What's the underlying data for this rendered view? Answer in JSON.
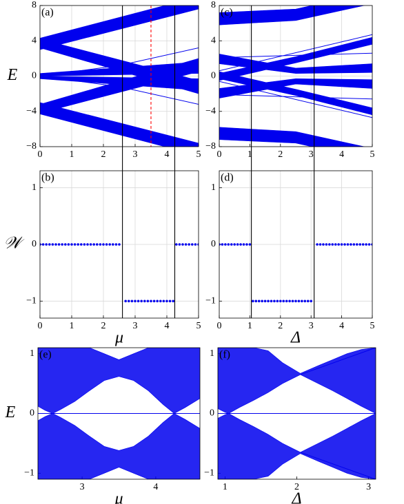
{
  "chart_data": [
    {
      "type": "band",
      "label": "(a)",
      "ylabel": "E",
      "color": "#0000ee",
      "grid": true,
      "xlim": [
        0,
        5
      ],
      "ylim": [
        -8,
        8
      ],
      "xticks": [
        0,
        1,
        2,
        3,
        4,
        5
      ],
      "yticks": [
        {
          "value": -8,
          "label": "−8"
        },
        {
          "value": -4,
          "label": "−4"
        },
        0,
        4,
        8
      ],
      "bands": [
        {
          "x": [
            0,
            5
          ],
          "lower": [
            3.0,
            7.6
          ],
          "upper": [
            4.3,
            9
          ]
        },
        {
          "x": [
            0,
            5
          ],
          "lower": [
            -4.3,
            -9
          ],
          "upper": [
            -3.0,
            -7.6
          ]
        },
        {
          "x": [
            0,
            5
          ],
          "lower": [
            -4.2,
            0.5
          ],
          "upper": [
            -3.2,
            2.0
          ]
        },
        {
          "x": [
            0,
            5
          ],
          "lower": [
            3.2,
            -2.0
          ],
          "upper": [
            4.2,
            -0.5
          ]
        },
        {
          "x": [
            0,
            5
          ],
          "lower": [
            0,
            0.3
          ],
          "upper": [
            0.3,
            1.6
          ]
        },
        {
          "x": [
            0,
            5
          ],
          "lower": [
            -0.3,
            -1.6
          ],
          "upper": [
            0,
            -0.3
          ]
        }
      ],
      "lines": [
        {
          "x": [
            0,
            2.5,
            5
          ],
          "values": [
            0,
            1.2,
            3.2
          ]
        },
        {
          "x": [
            0,
            2.5,
            5
          ],
          "values": [
            0,
            -1.2,
            -3.2
          ]
        }
      ],
      "vlines": [
        {
          "x": 2.6,
          "color": "#000000",
          "dashed": false
        },
        {
          "x": 4.25,
          "color": "#000000",
          "dashed": false
        },
        {
          "x": 3.5,
          "color": "#ff0000",
          "dashed": true
        }
      ]
    },
    {
      "type": "scatter",
      "label": "(b)",
      "ylabel": "𝒲",
      "xlabel": "μ",
      "color": "#0000ee",
      "grid": true,
      "xlim": [
        0,
        5
      ],
      "ylim": [
        -1.3,
        1.3
      ],
      "xticks": [
        0,
        1,
        2,
        3,
        4,
        5
      ],
      "yticks": [
        {
          "value": -1,
          "label": "−1"
        },
        0,
        1
      ],
      "x": [
        0,
        0.1,
        0.2,
        0.3,
        0.4,
        0.5,
        0.6,
        0.7,
        0.8,
        0.9,
        1.0,
        1.1,
        1.2,
        1.3,
        1.4,
        1.5,
        1.6,
        1.7,
        1.8,
        1.9,
        2.0,
        2.1,
        2.2,
        2.3,
        2.4,
        2.5,
        2.7,
        2.8,
        2.9,
        3.0,
        3.1,
        3.2,
        3.3,
        3.4,
        3.5,
        3.6,
        3.7,
        3.8,
        3.9,
        4.0,
        4.1,
        4.2,
        4.3,
        4.4,
        4.5,
        4.6,
        4.7,
        4.8,
        4.9,
        5.0
      ],
      "values": [
        0,
        0,
        0,
        0,
        0,
        0,
        0,
        0,
        0,
        0,
        0,
        0,
        0,
        0,
        0,
        0,
        0,
        0,
        0,
        0,
        0,
        0,
        0,
        0,
        0,
        0,
        -1,
        -1,
        -1,
        -1,
        -1,
        -1,
        -1,
        -1,
        -1,
        -1,
        -1,
        -1,
        -1,
        -1,
        -1,
        -1,
        0,
        0,
        0,
        0,
        0,
        0,
        0,
        0
      ],
      "vlines": [
        {
          "x": 2.6,
          "color": "#000000",
          "dashed": false
        },
        {
          "x": 4.25,
          "color": "#000000",
          "dashed": false
        }
      ]
    },
    {
      "type": "band",
      "label": "(c)",
      "color": "#0000ee",
      "grid": true,
      "xlim": [
        0,
        5
      ],
      "ylim": [
        -8,
        8
      ],
      "xticks": [
        0,
        1,
        2,
        3,
        4,
        5
      ],
      "yticks": [
        {
          "value": -8,
          "label": "−8"
        },
        {
          "value": -4,
          "label": "−4"
        },
        0,
        4,
        8
      ],
      "bands": [
        {
          "x": [
            0,
            2.5,
            5
          ],
          "lower": [
            5.8,
            6.3,
            8.2
          ],
          "upper": [
            7.2,
            7.6,
            9.5
          ]
        },
        {
          "x": [
            0,
            2.5,
            5
          ],
          "lower": [
            -7.2,
            -7.6,
            -9.5
          ],
          "upper": [
            -5.8,
            -6.3,
            -8.2
          ]
        },
        {
          "x": [
            0,
            2.5,
            5
          ],
          "lower": [
            1.4,
            0.3,
            0.4
          ],
          "upper": [
            2.5,
            0.9,
            1.4
          ]
        },
        {
          "x": [
            0,
            2.5,
            5
          ],
          "lower": [
            -2.5,
            -0.9,
            -1.4
          ],
          "upper": [
            -1.4,
            -0.3,
            -0.4
          ]
        },
        {
          "x": [
            0,
            2.5,
            5
          ],
          "lower": [
            -0.5,
            1.5,
            3.6
          ],
          "upper": [
            0.3,
            2.2,
            4.4
          ]
        },
        {
          "x": [
            0,
            2.5,
            5
          ],
          "lower": [
            -0.3,
            -2.2,
            -4.4
          ],
          "upper": [
            0.5,
            -1.5,
            -3.6
          ]
        }
      ],
      "lines": [
        {
          "x": [
            0,
            5
          ],
          "values": [
            0.6,
            4.7
          ]
        },
        {
          "x": [
            0,
            5
          ],
          "values": [
            -0.6,
            -4.7
          ]
        },
        {
          "x": [
            0,
            5
          ],
          "values": [
            2.1,
            2.6
          ]
        },
        {
          "x": [
            0,
            5
          ],
          "values": [
            -2.1,
            -2.6
          ]
        }
      ],
      "vlines": [
        {
          "x": 1.05,
          "color": "#000000",
          "dashed": false
        },
        {
          "x": 3.1,
          "color": "#000000",
          "dashed": false
        }
      ]
    },
    {
      "type": "scatter",
      "label": "(d)",
      "xlabel": "Δ",
      "color": "#0000ee",
      "grid": true,
      "xlim": [
        0,
        5
      ],
      "ylim": [
        -1.3,
        1.3
      ],
      "xticks": [
        0,
        1,
        2,
        3,
        4,
        5
      ],
      "yticks": [
        {
          "value": -1,
          "label": "−1"
        },
        0,
        1
      ],
      "x": [
        0,
        0.1,
        0.2,
        0.3,
        0.4,
        0.5,
        0.6,
        0.7,
        0.8,
        0.9,
        1.0,
        1.1,
        1.2,
        1.3,
        1.4,
        1.5,
        1.6,
        1.7,
        1.8,
        1.9,
        2.0,
        2.1,
        2.2,
        2.3,
        2.4,
        2.5,
        2.6,
        2.7,
        2.8,
        2.9,
        3.0,
        3.2,
        3.3,
        3.4,
        3.5,
        3.6,
        3.7,
        3.8,
        3.9,
        4.0,
        4.1,
        4.2,
        4.3,
        4.4,
        4.5,
        4.6,
        4.7,
        4.8,
        4.9,
        5.0
      ],
      "values": [
        0,
        0,
        0,
        0,
        0,
        0,
        0,
        0,
        0,
        0,
        0,
        -1,
        -1,
        -1,
        -1,
        -1,
        -1,
        -1,
        -1,
        -1,
        -1,
        -1,
        -1,
        -1,
        -1,
        -1,
        -1,
        -1,
        -1,
        -1,
        -1,
        0,
        0,
        0,
        0,
        0,
        0,
        0,
        0,
        0,
        0,
        0,
        0,
        0,
        0,
        0,
        0,
        0,
        0,
        0
      ],
      "vlines": [
        {
          "x": 1.05,
          "color": "#000000",
          "dashed": false
        },
        {
          "x": 3.1,
          "color": "#000000",
          "dashed": false
        }
      ]
    },
    {
      "type": "band",
      "label": "(e)",
      "ylabel": "E",
      "xlabel": "μ",
      "color": "#0000ee",
      "grid": false,
      "xlim": [
        2.4,
        4.6
      ],
      "ylim": [
        -1.1,
        1.1
      ],
      "xticks": [
        3,
        4
      ],
      "yticks": [
        {
          "value": -1,
          "label": "−1"
        },
        0,
        1
      ],
      "bands": [
        {
          "x": [
            2.4,
            2.5,
            2.6,
            2.7,
            2.9,
            3.1,
            3.3,
            3.5,
            3.7,
            3.9,
            4.1,
            4.25,
            4.4,
            4.6
          ],
          "lower": [
            0.12,
            0.05,
            0,
            0.06,
            0.2,
            0.38,
            0.55,
            0.62,
            0.55,
            0.38,
            0.15,
            0,
            0.1,
            0.25
          ],
          "upper": [
            1.1,
            1.1,
            1.1,
            1.1,
            1.1,
            1.1,
            1.0,
            0.9,
            1.0,
            1.1,
            1.1,
            1.1,
            1.1,
            1.1
          ]
        },
        {
          "x": [
            2.4,
            2.5,
            2.6,
            2.7,
            2.9,
            3.1,
            3.3,
            3.5,
            3.7,
            3.9,
            4.1,
            4.25,
            4.4,
            4.6
          ],
          "lower": [
            -1.1,
            -1.1,
            -1.1,
            -1.1,
            -1.1,
            -1.1,
            -1.0,
            -0.9,
            -1.0,
            -1.1,
            -1.1,
            -1.1,
            -1.1,
            -1.1
          ],
          "upper": [
            -0.12,
            -0.05,
            0,
            -0.06,
            -0.2,
            -0.38,
            -0.55,
            -0.62,
            -0.55,
            -0.38,
            -0.15,
            0,
            -0.1,
            -0.25
          ]
        }
      ],
      "lines": [
        {
          "x": [
            2.4,
            4.6
          ],
          "values": [
            0,
            0
          ]
        }
      ]
    },
    {
      "type": "band",
      "label": "(f)",
      "xlabel": "Δ",
      "color": "#0000ee",
      "grid": false,
      "xlim": [
        0.9,
        3.1
      ],
      "ylim": [
        -1.1,
        1.1
      ],
      "xticks": [
        1,
        2,
        3
      ],
      "yticks": [
        {
          "value": -1,
          "label": "−1"
        },
        0,
        1
      ],
      "bands": [
        {
          "x": [
            0.9,
            1.0,
            1.05,
            1.2,
            1.4,
            1.6,
            1.8,
            2.05,
            2.3,
            2.5,
            2.7,
            2.9,
            3.1
          ],
          "lower": [
            0.08,
            0.02,
            0,
            0.1,
            0.22,
            0.35,
            0.5,
            0.65,
            0.5,
            0.38,
            0.25,
            0.12,
            0
          ],
          "upper": [
            1.1,
            1.1,
            1.1,
            1.1,
            1.1,
            1.05,
            0.85,
            0.67,
            0.8,
            0.9,
            1.0,
            1.07,
            1.1
          ]
        },
        {
          "x": [
            0.9,
            1.0,
            1.05,
            1.2,
            1.4,
            1.6,
            1.8,
            2.05,
            2.3,
            2.5,
            2.7,
            2.9,
            3.1
          ],
          "lower": [
            -1.1,
            -1.1,
            -1.1,
            -1.1,
            -1.1,
            -1.05,
            -0.85,
            -0.67,
            -0.8,
            -0.9,
            -1.0,
            -1.07,
            -1.1
          ],
          "upper": [
            -0.08,
            -0.02,
            0,
            -0.1,
            -0.22,
            -0.35,
            -0.5,
            -0.65,
            -0.5,
            -0.38,
            -0.25,
            -0.12,
            0
          ]
        }
      ],
      "lines": [
        {
          "x": [
            0.9,
            3.1
          ],
          "values": [
            0,
            0
          ]
        },
        {
          "x": [
            2.05,
            3.1
          ],
          "values": [
            0.65,
            1.1
          ]
        },
        {
          "x": [
            2.05,
            3.1
          ],
          "values": [
            -0.65,
            -1.1
          ]
        }
      ]
    }
  ]
}
